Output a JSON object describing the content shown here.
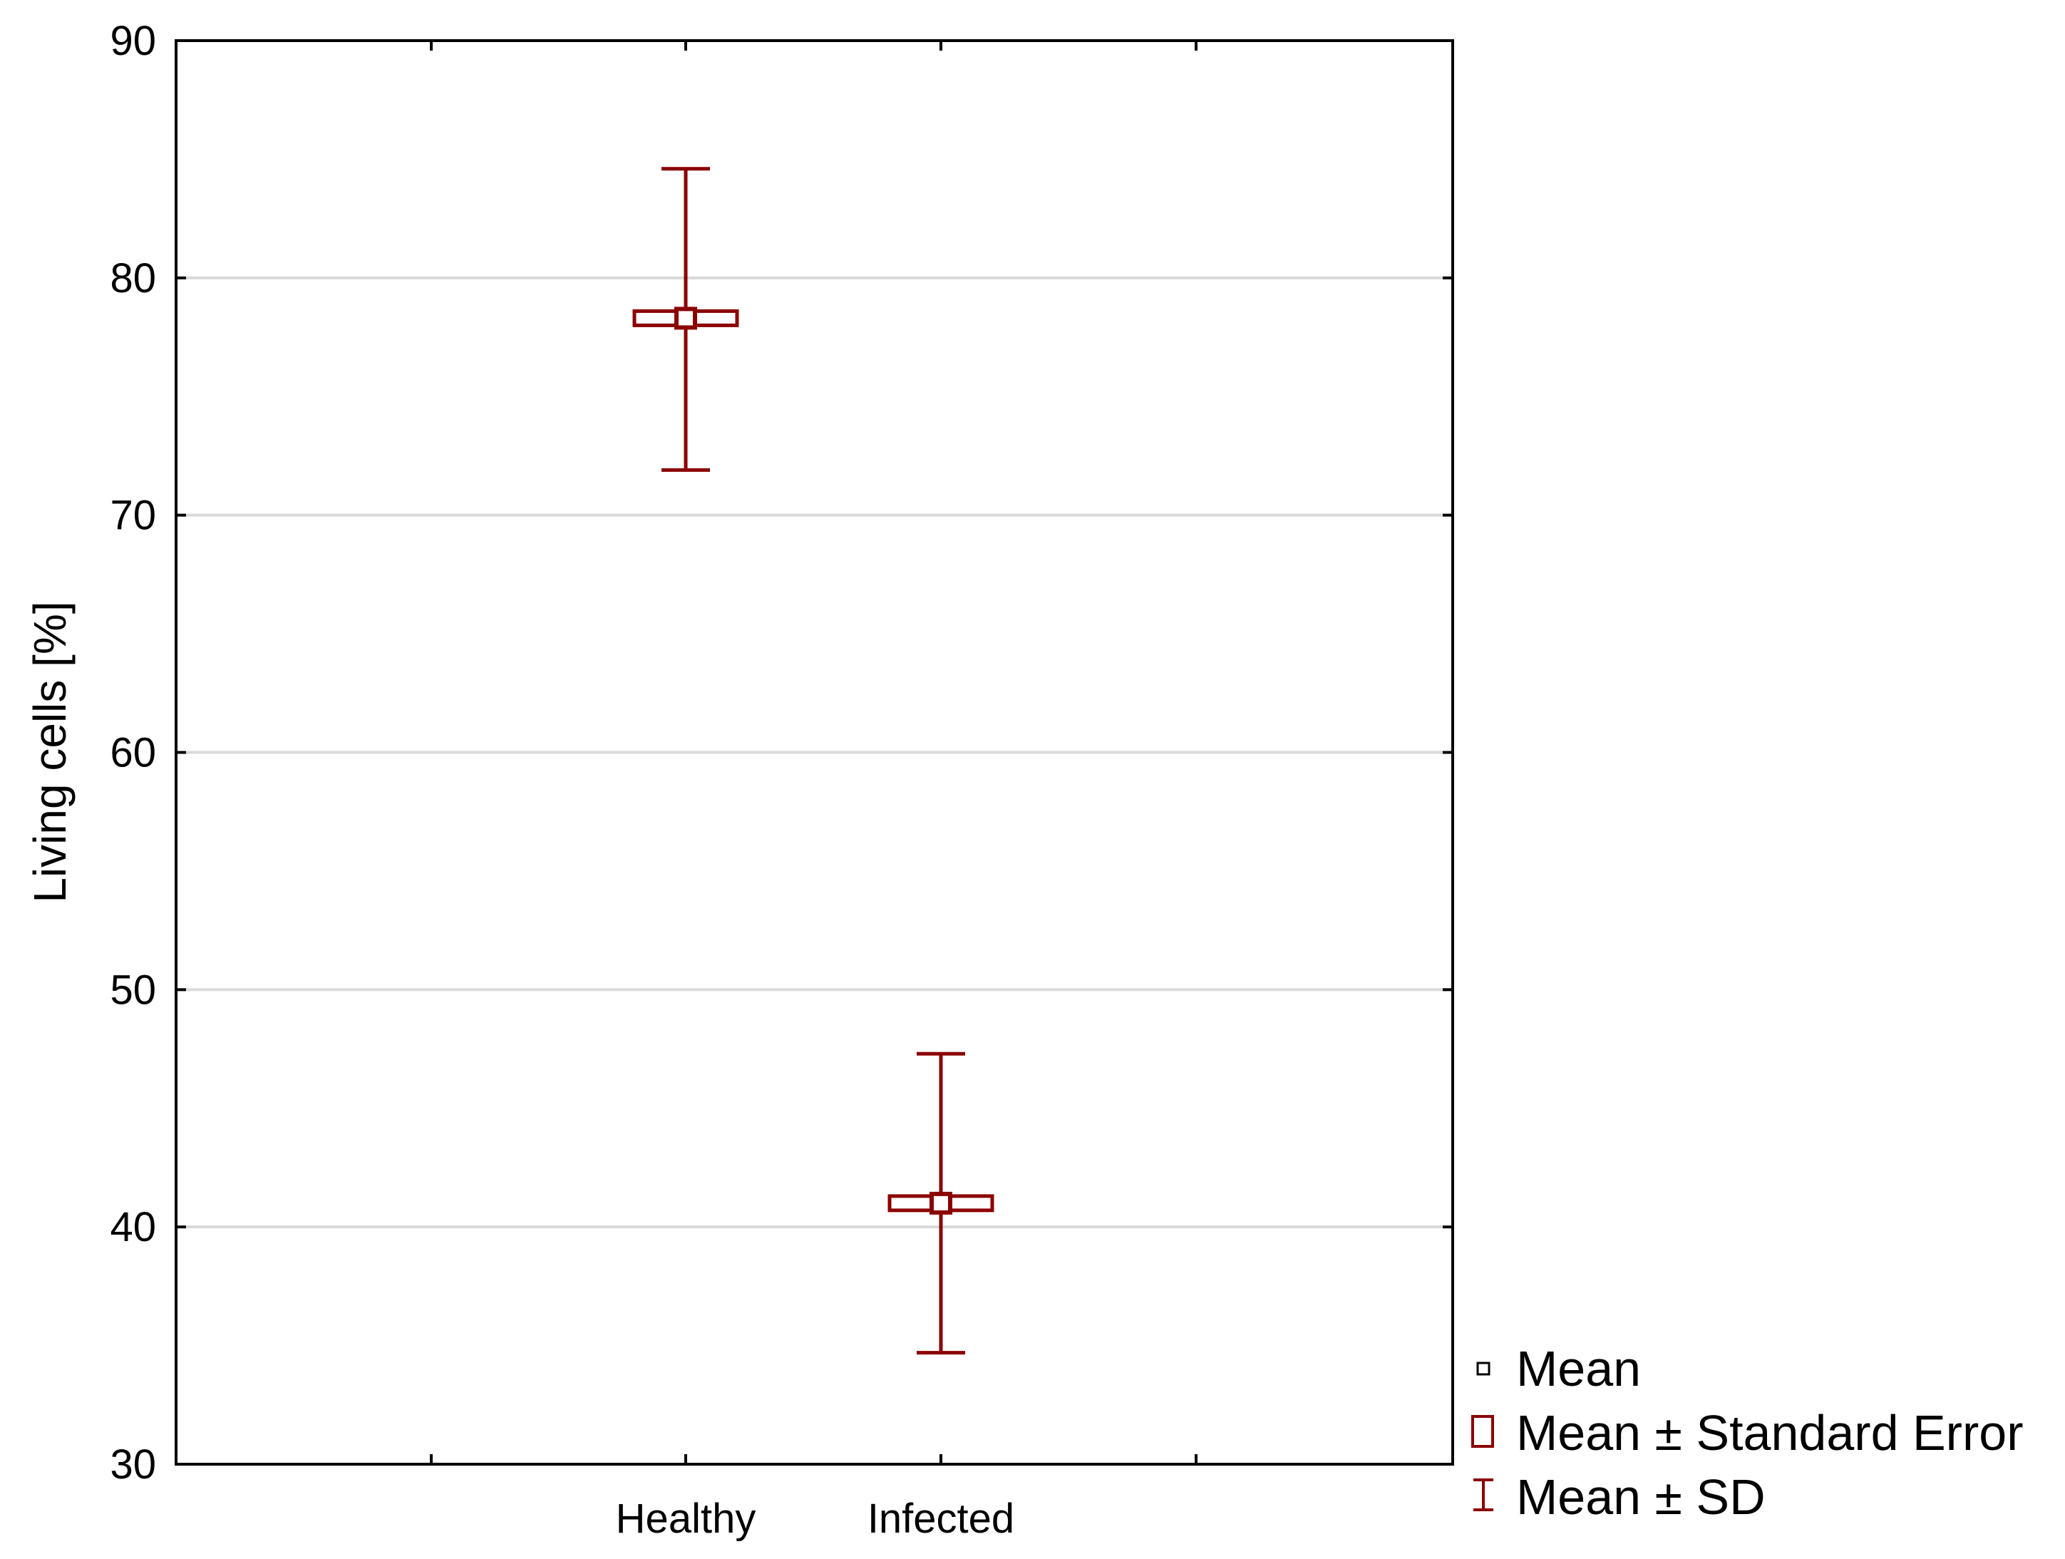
{
  "chart_data": {
    "type": "scatter",
    "variant": "mean-error-plot",
    "title": "",
    "xlabel": "",
    "ylabel": "Living cells [%]",
    "ylim": [
      30,
      90
    ],
    "yticks": [
      30,
      40,
      50,
      60,
      70,
      80,
      90
    ],
    "categories": [
      "Healthy",
      "Infected"
    ],
    "series": [
      {
        "name": "Mean",
        "values": [
          78.3,
          41.0
        ]
      },
      {
        "name": "Mean ± Standard Error",
        "lower": [
          78.0,
          40.7
        ],
        "upper": [
          78.6,
          41.3
        ]
      },
      {
        "name": "Mean ± SD",
        "lower": [
          71.9,
          34.7
        ],
        "upper": [
          84.6,
          47.3
        ]
      }
    ],
    "grid": true,
    "legend": {
      "position": "bottom-right-outside",
      "entries": [
        "Mean",
        "Mean ± Standard Error",
        "Mean ± SD"
      ]
    },
    "colors": {
      "marker": "#8b0000",
      "mean_legend": "#000000",
      "grid": "#d9d9d9",
      "axis": "#000000"
    }
  }
}
